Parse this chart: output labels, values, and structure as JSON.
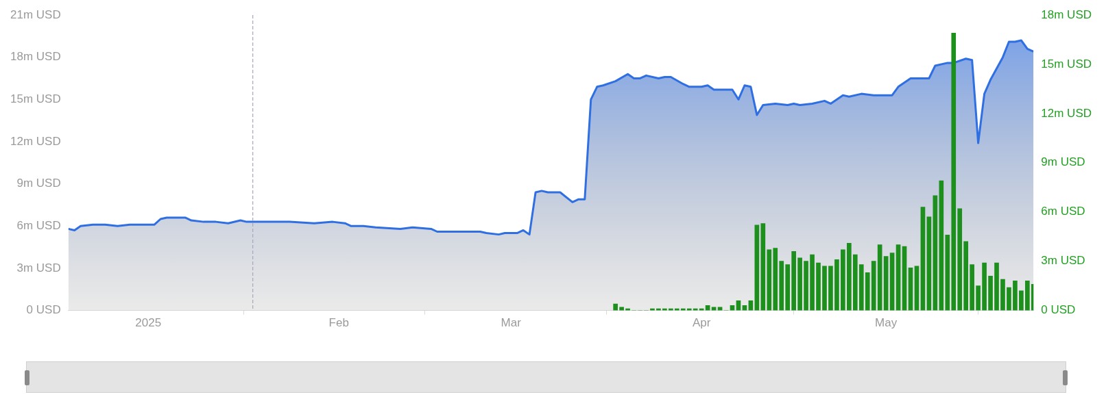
{
  "chart_data": {
    "type": "area",
    "xlim": [
      "2024-12-19",
      "2025-05-25"
    ],
    "xticks": [
      {
        "value": "2025-01-01",
        "label": "2025"
      },
      {
        "value": "2025-02-01",
        "label": "Feb"
      },
      {
        "value": "2025-03-01",
        "label": "Mar"
      },
      {
        "value": "2025-04-01",
        "label": "Apr"
      },
      {
        "value": "2025-05-01",
        "label": "May"
      }
    ],
    "ylim": [
      0,
      21
    ],
    "yticks": [
      {
        "value": 0,
        "label": "0 USD"
      },
      {
        "value": 3,
        "label": "3m USD"
      },
      {
        "value": 6,
        "label": "6m USD"
      },
      {
        "value": 9,
        "label": "9m USD"
      },
      {
        "value": 12,
        "label": "12m USD"
      },
      {
        "value": 15,
        "label": "15m USD"
      },
      {
        "value": 18,
        "label": "18m USD"
      },
      {
        "value": 21,
        "label": "21m USD"
      }
    ],
    "y2lim": [
      0,
      18
    ],
    "y2ticks": [
      {
        "value": 0,
        "label": "0 USD"
      },
      {
        "value": 3,
        "label": "3m USD"
      },
      {
        "value": 6,
        "label": "6m USD"
      },
      {
        "value": 9,
        "label": "9m USD"
      },
      {
        "value": 12,
        "label": "12m USD"
      },
      {
        "value": 15,
        "label": "15m USD"
      },
      {
        "value": 18,
        "label": "18m USD"
      }
    ],
    "ref_lines": [
      {
        "axis": "x",
        "value": "2025-01-18",
        "color": "#a8a8b8",
        "line_style": "dashed"
      }
    ],
    "series": [
      {
        "color": "#2f6fe2",
        "x": [
          "2024-12-19",
          "2024-12-20",
          "2024-12-21",
          "2024-12-23",
          "2024-12-25",
          "2024-12-27",
          "2024-12-29",
          "2025-01-02",
          "2025-01-03",
          "2025-01-04",
          "2025-01-07",
          "2025-01-08",
          "2025-01-10",
          "2025-01-12",
          "2025-01-14",
          "2025-01-16",
          "2025-01-17",
          "2025-01-20",
          "2025-01-24",
          "2025-01-28",
          "2025-01-31",
          "2025-02-02",
          "2025-02-03",
          "2025-02-05",
          "2025-02-07",
          "2025-02-11",
          "2025-02-13",
          "2025-02-16",
          "2025-02-17",
          "2025-02-20",
          "2025-02-24",
          "2025-02-25",
          "2025-02-27",
          "2025-02-28",
          "2025-03-02",
          "2025-03-03",
          "2025-03-04",
          "2025-03-05",
          "2025-03-06",
          "2025-03-07",
          "2025-03-09",
          "2025-03-11",
          "2025-03-12",
          "2025-03-13",
          "2025-03-14",
          "2025-03-15",
          "2025-03-16",
          "2025-03-18",
          "2025-03-20",
          "2025-03-21",
          "2025-03-22",
          "2025-03-23",
          "2025-03-25",
          "2025-03-26",
          "2025-03-27",
          "2025-03-29",
          "2025-03-30",
          "2025-04-01",
          "2025-04-02",
          "2025-04-03",
          "2025-04-06",
          "2025-04-07",
          "2025-04-08",
          "2025-04-09",
          "2025-04-10",
          "2025-04-11",
          "2025-04-13",
          "2025-04-15",
          "2025-04-16",
          "2025-04-17",
          "2025-04-19",
          "2025-04-21",
          "2025-04-22",
          "2025-04-24",
          "2025-04-25",
          "2025-04-27",
          "2025-04-29",
          "2025-05-02",
          "2025-05-03",
          "2025-05-05",
          "2025-05-07",
          "2025-05-08",
          "2025-05-09",
          "2025-05-11",
          "2025-05-12",
          "2025-05-14",
          "2025-05-15",
          "2025-05-16",
          "2025-05-17",
          "2025-05-18",
          "2025-05-20",
          "2025-05-21",
          "2025-05-22",
          "2025-05-23",
          "2025-05-24",
          "2025-05-25"
        ],
        "values": [
          5.8,
          5.7,
          6.0,
          6.1,
          6.1,
          6.0,
          6.1,
          6.1,
          6.5,
          6.6,
          6.6,
          6.4,
          6.3,
          6.3,
          6.2,
          6.4,
          6.3,
          6.3,
          6.3,
          6.2,
          6.3,
          6.2,
          6.0,
          6.0,
          5.9,
          5.8,
          5.9,
          5.8,
          5.6,
          5.6,
          5.6,
          5.5,
          5.4,
          5.5,
          5.5,
          5.7,
          5.4,
          8.4,
          8.5,
          8.4,
          8.4,
          7.7,
          7.9,
          7.9,
          15.0,
          15.9,
          16.0,
          16.3,
          16.8,
          16.5,
          16.5,
          16.7,
          16.5,
          16.6,
          16.6,
          16.1,
          15.9,
          15.9,
          16.0,
          15.7,
          15.7,
          15.0,
          16.0,
          15.9,
          13.9,
          14.6,
          14.7,
          14.6,
          14.7,
          14.6,
          14.7,
          14.9,
          14.7,
          15.3,
          15.2,
          15.4,
          15.3,
          15.3,
          15.9,
          16.5,
          16.5,
          16.5,
          17.4,
          17.6,
          17.6,
          17.9,
          17.8,
          11.9,
          15.4,
          16.4,
          18.0,
          19.1,
          19.1,
          19.2,
          18.6,
          18.4
        ]
      },
      {
        "type": "bar",
        "axis": "y2",
        "color": "#1c8f1c",
        "x": [
          "2025-03-18",
          "2025-03-19",
          "2025-03-20",
          "2025-03-21",
          "2025-03-22",
          "2025-03-23",
          "2025-03-24",
          "2025-03-25",
          "2025-03-26",
          "2025-03-27",
          "2025-03-28",
          "2025-03-29",
          "2025-03-30",
          "2025-03-31",
          "2025-04-01",
          "2025-04-02",
          "2025-04-03",
          "2025-04-04",
          "2025-04-05",
          "2025-04-06",
          "2025-04-07",
          "2025-04-08",
          "2025-04-09",
          "2025-04-10",
          "2025-04-11",
          "2025-04-12",
          "2025-04-13",
          "2025-04-14",
          "2025-04-15",
          "2025-04-16",
          "2025-04-17",
          "2025-04-18",
          "2025-04-19",
          "2025-04-20",
          "2025-04-21",
          "2025-04-22",
          "2025-04-23",
          "2025-04-24",
          "2025-04-25",
          "2025-04-26",
          "2025-04-27",
          "2025-04-28",
          "2025-04-29",
          "2025-04-30",
          "2025-05-01",
          "2025-05-02",
          "2025-05-03",
          "2025-05-04",
          "2025-05-05",
          "2025-05-06",
          "2025-05-07",
          "2025-05-08",
          "2025-05-09",
          "2025-05-10",
          "2025-05-11",
          "2025-05-12",
          "2025-05-13",
          "2025-05-14",
          "2025-05-15",
          "2025-05-16",
          "2025-05-17",
          "2025-05-18",
          "2025-05-19",
          "2025-05-20",
          "2025-05-21",
          "2025-05-22",
          "2025-05-23",
          "2025-05-24",
          "2025-05-25"
        ],
        "values": [
          0.4,
          0.2,
          0.1,
          0,
          0,
          0,
          0.1,
          0.1,
          0.1,
          0.1,
          0.1,
          0.1,
          0.1,
          0.1,
          0.1,
          0.3,
          0.2,
          0.2,
          0,
          0.3,
          0.6,
          0.3,
          0.6,
          5.2,
          5.3,
          3.7,
          3.8,
          3.0,
          2.8,
          3.6,
          3.2,
          3.0,
          3.4,
          2.9,
          2.7,
          2.7,
          3.1,
          3.7,
          4.1,
          3.4,
          2.8,
          2.3,
          3.0,
          4.0,
          3.3,
          3.5,
          4.0,
          3.9,
          2.6,
          2.7,
          6.3,
          5.7,
          7.0,
          7.9,
          4.6,
          16.9,
          6.2,
          4.2,
          2.8,
          1.5,
          2.9,
          2.1,
          2.9,
          1.9,
          1.4,
          1.8,
          1.2,
          1.8,
          1.6
        ]
      }
    ]
  }
}
